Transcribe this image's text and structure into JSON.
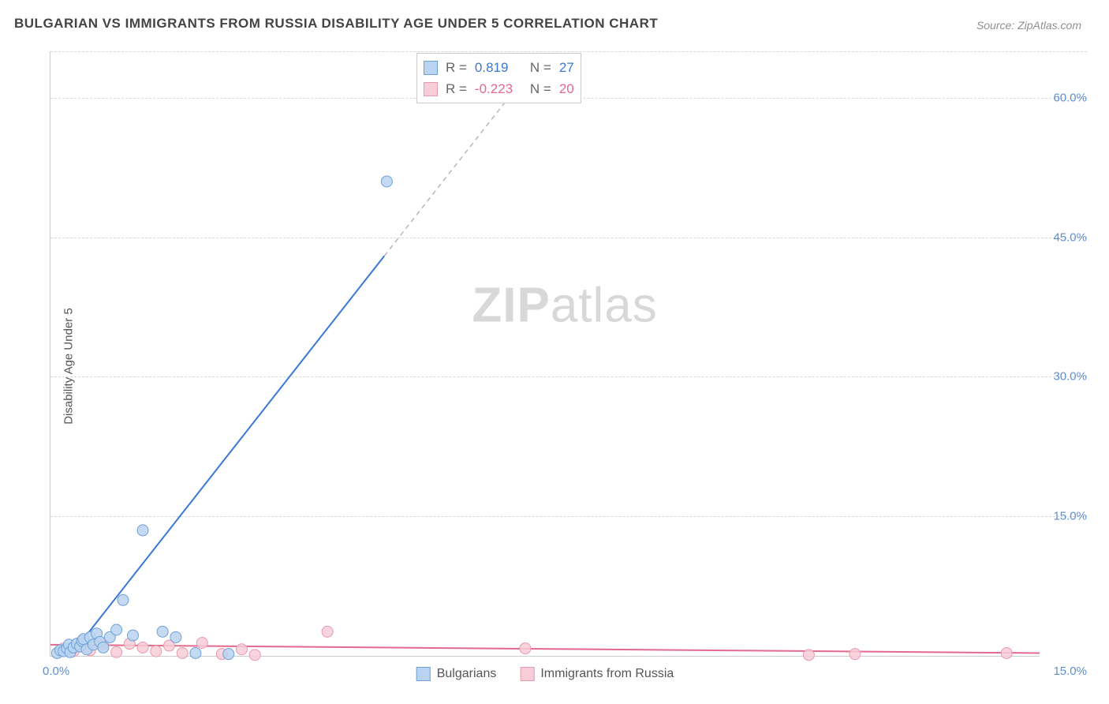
{
  "title": "BULGARIAN VS IMMIGRANTS FROM RUSSIA DISABILITY AGE UNDER 5 CORRELATION CHART",
  "source": "Source: ZipAtlas.com",
  "ylabel": "Disability Age Under 5",
  "watermark_a": "ZIP",
  "watermark_b": "atlas",
  "chart": {
    "type": "scatter-with-regression",
    "background_color": "#ffffff",
    "grid_color": "#d8d8d8",
    "axis_color": "#cccccc",
    "tick_color": "#5b8fd6",
    "xlim": [
      0,
      15
    ],
    "ylim": [
      0,
      65
    ],
    "yticks": [
      {
        "v": 15,
        "label": "15.0%"
      },
      {
        "v": 30,
        "label": "30.0%"
      },
      {
        "v": 45,
        "label": "45.0%"
      },
      {
        "v": 60,
        "label": "60.0%"
      }
    ],
    "xtick_left": "0.0%",
    "xtick_right": "15.0%",
    "series_a": {
      "name": "Bulgarians",
      "fill": "#b9d3f0",
      "stroke": "#6fa0d8",
      "line_color": "#3a78d6",
      "r_value": "0.819",
      "n_value": "27",
      "marker_r": 7,
      "points": [
        [
          0.1,
          0.3
        ],
        [
          0.15,
          0.6
        ],
        [
          0.2,
          0.5
        ],
        [
          0.25,
          0.8
        ],
        [
          0.28,
          1.2
        ],
        [
          0.3,
          0.4
        ],
        [
          0.35,
          0.9
        ],
        [
          0.4,
          1.3
        ],
        [
          0.45,
          1.0
        ],
        [
          0.48,
          1.6
        ],
        [
          0.5,
          1.8
        ],
        [
          0.55,
          0.7
        ],
        [
          0.6,
          2.0
        ],
        [
          0.65,
          1.2
        ],
        [
          0.7,
          2.4
        ],
        [
          0.75,
          1.5
        ],
        [
          0.8,
          0.9
        ],
        [
          0.9,
          2.0
        ],
        [
          1.0,
          2.8
        ],
        [
          1.1,
          6.0
        ],
        [
          1.25,
          2.2
        ],
        [
          1.4,
          13.5
        ],
        [
          1.7,
          2.6
        ],
        [
          1.9,
          2.0
        ],
        [
          2.2,
          0.3
        ],
        [
          2.7,
          0.2
        ],
        [
          5.1,
          51.0
        ]
      ],
      "regression": {
        "x1": 0.3,
        "y1": 0,
        "x2": 7.5,
        "y2": 65,
        "solid_until_y": 43
      }
    },
    "series_b": {
      "name": "Immigrants from Russia",
      "fill": "#f7cdd9",
      "stroke": "#e89ab0",
      "line_color": "#e36a8f",
      "r_value": "-0.223",
      "n_value": "20",
      "marker_r": 7,
      "points": [
        [
          0.2,
          0.8
        ],
        [
          0.35,
          0.5
        ],
        [
          0.45,
          1.0
        ],
        [
          0.6,
          0.6
        ],
        [
          0.8,
          1.2
        ],
        [
          1.0,
          0.4
        ],
        [
          1.2,
          1.3
        ],
        [
          1.4,
          0.9
        ],
        [
          1.6,
          0.5
        ],
        [
          1.8,
          1.1
        ],
        [
          2.0,
          0.3
        ],
        [
          2.3,
          1.4
        ],
        [
          2.6,
          0.2
        ],
        [
          2.9,
          0.7
        ],
        [
          3.1,
          0.1
        ],
        [
          4.2,
          2.6
        ],
        [
          7.2,
          0.8
        ],
        [
          11.5,
          0.1
        ],
        [
          12.2,
          0.2
        ],
        [
          14.5,
          0.3
        ]
      ],
      "regression": {
        "x1": 0,
        "y1": 1.2,
        "x2": 15,
        "y2": 0.3
      }
    }
  },
  "legend": {
    "a": "Bulgarians",
    "b": "Immigrants from Russia"
  },
  "stats_labels": {
    "r": "R =",
    "n": "N ="
  }
}
